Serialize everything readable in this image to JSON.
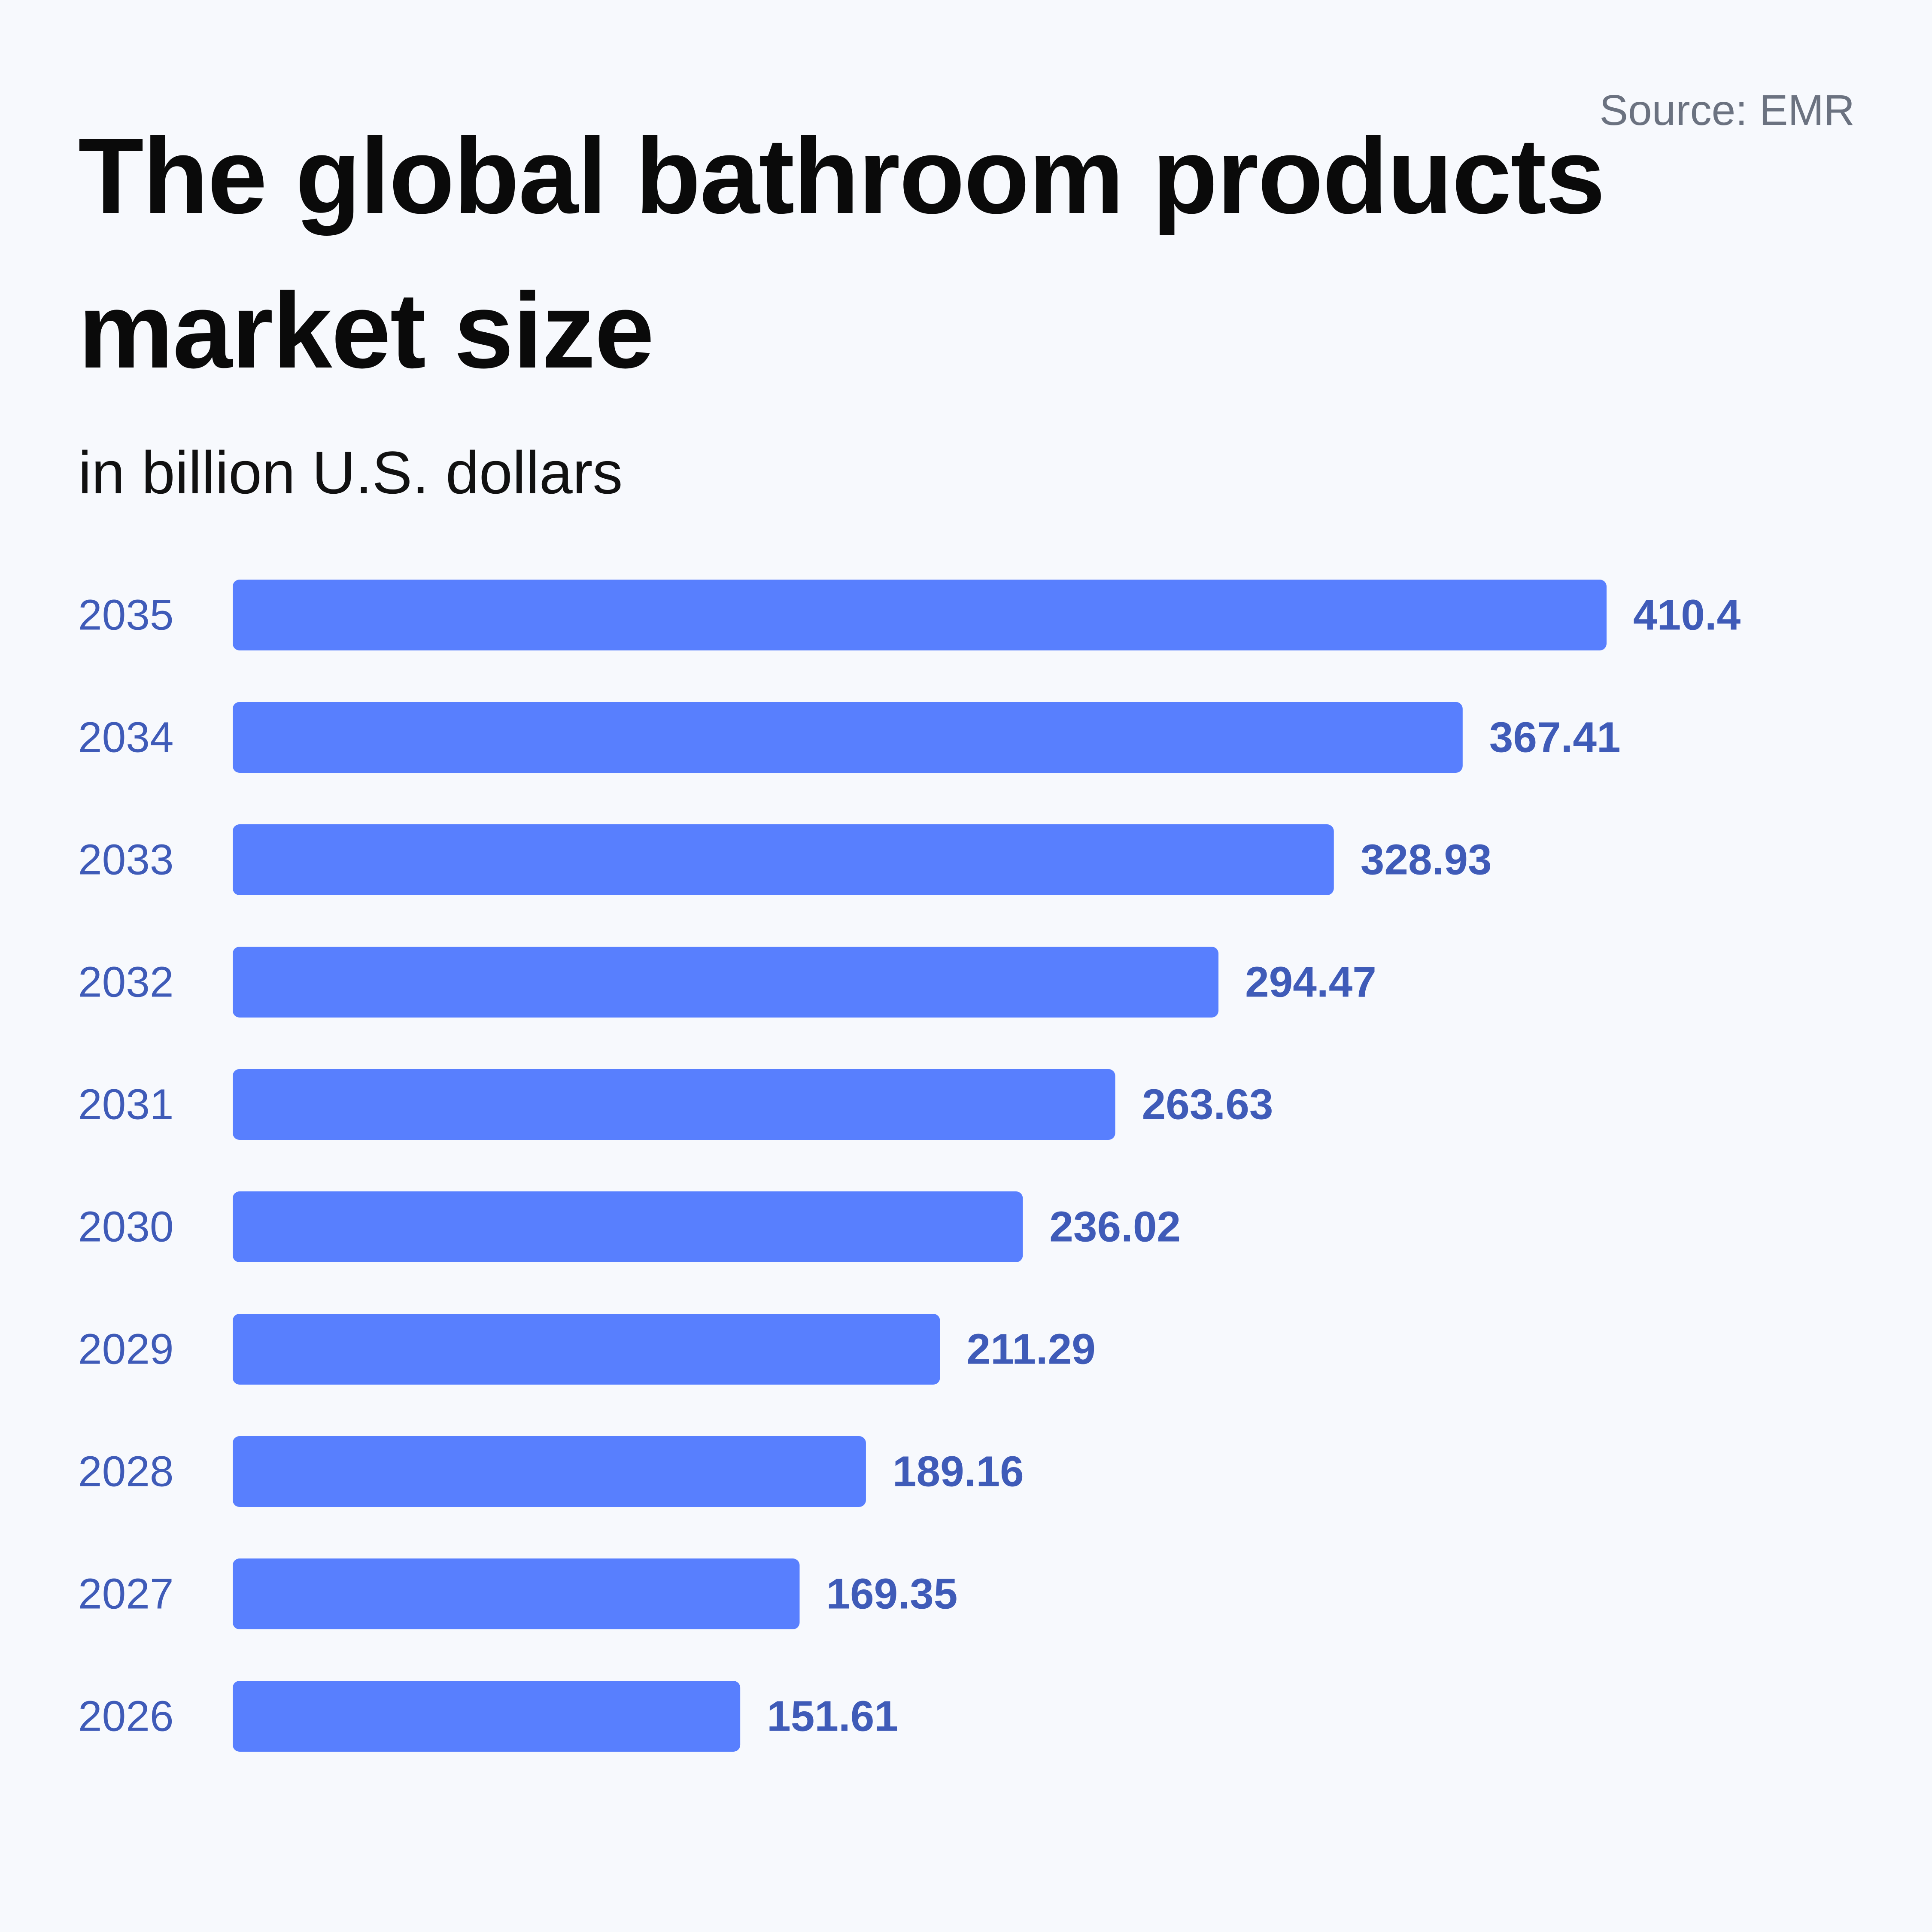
{
  "source": "Source: EMR",
  "chart_data": {
    "type": "bar",
    "orientation": "horizontal",
    "title": "The global bathroom products market size",
    "subtitle": "in billion U.S. dollars",
    "categories": [
      "2035",
      "2034",
      "2033",
      "2032",
      "2031",
      "2030",
      "2029",
      "2028",
      "2027",
      "2026"
    ],
    "values": [
      410.4,
      367.41,
      328.93,
      294.47,
      263.63,
      236.02,
      211.29,
      189.16,
      169.35,
      151.61
    ],
    "value_labels": [
      "410.4",
      "367.41",
      "328.93",
      "294.47",
      "263.63",
      "236.02",
      "211.29",
      "189.16",
      "169.35",
      "151.61"
    ],
    "xlim": [
      0,
      410.4
    ],
    "grid": false,
    "legend": "none",
    "bar_color": "#587ffe",
    "label_color": "#3f5bb8"
  }
}
